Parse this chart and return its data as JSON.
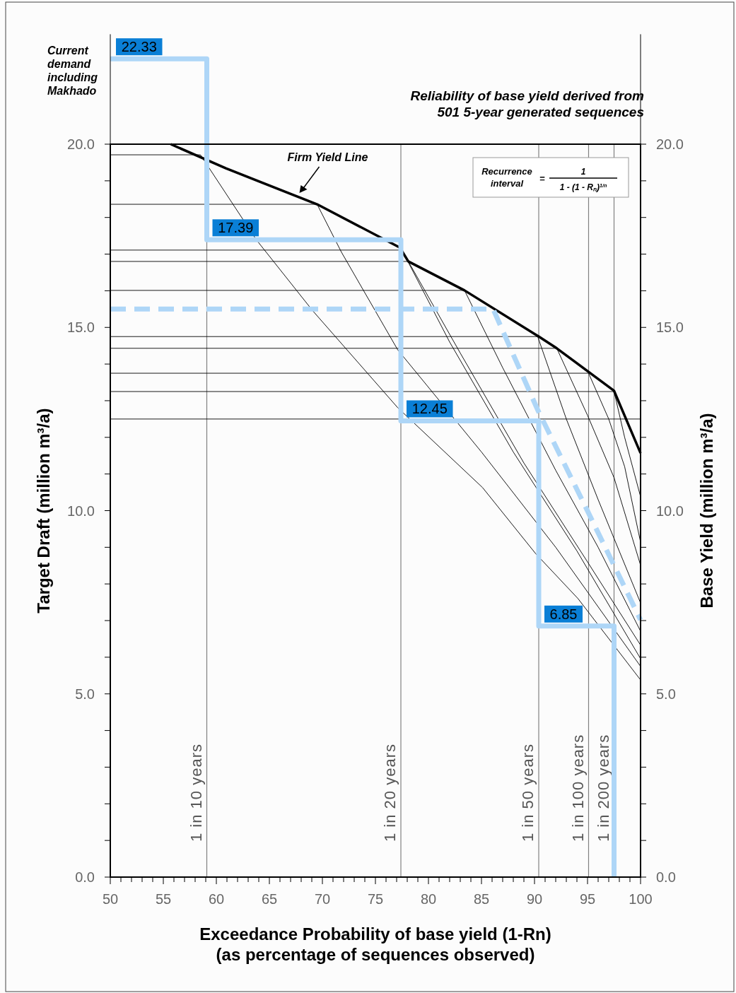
{
  "chart_data": {
    "type": "line",
    "title": "Reliability of base yield derived from\n501 5-year generated sequences",
    "xlabel": "Exceedance Probability  of base yield (1-Rn)\n(as percentage of sequences observed)",
    "ylabel": "Target Draft (million m³/a)",
    "y2label": "Base Yield (million m³/a)",
    "annotations": [
      "Current demand including Makhado",
      "Recurrence interval",
      "=",
      "1",
      "1 - (1 - Rₙ)$^{1/n}$"
    ],
    "xlim": [
      50,
      100
    ],
    "xticks": [
      50,
      {
        "value": 51,
        "label": null
      },
      {
        "value": 52,
        "label": null
      },
      {
        "value": 53,
        "label": null
      },
      {
        "value": 54,
        "label": null
      },
      55,
      {
        "value": 56,
        "label": null
      },
      {
        "value": 57,
        "label": null
      },
      {
        "value": 58,
        "label": null
      },
      {
        "value": 59,
        "label": null
      },
      60,
      {
        "value": 61,
        "label": null
      },
      {
        "value": 62,
        "label": null
      },
      {
        "value": 63,
        "label": null
      },
      {
        "value": 64,
        "label": null
      },
      65,
      {
        "value": 66,
        "label": null
      },
      {
        "value": 67,
        "label": null
      },
      {
        "value": 68,
        "label": null
      },
      {
        "value": 69,
        "label": null
      },
      70,
      {
        "value": 71,
        "label": null
      },
      {
        "value": 72,
        "label": null
      },
      {
        "value": 73,
        "label": null
      },
      {
        "value": 74,
        "label": null
      },
      75,
      {
        "value": 76,
        "label": null
      },
      {
        "value": 77,
        "label": null
      },
      {
        "value": 78,
        "label": null
      },
      {
        "value": 79,
        "label": null
      },
      80,
      {
        "value": 81,
        "label": null
      },
      {
        "value": 82,
        "label": null
      },
      {
        "value": 83,
        "label": null
      },
      {
        "value": 84,
        "label": null
      },
      85,
      {
        "value": 86,
        "label": null
      },
      {
        "value": 87,
        "label": null
      },
      {
        "value": 88,
        "label": null
      },
      {
        "value": 89,
        "label": null
      },
      90,
      {
        "value": 91,
        "label": null
      },
      {
        "value": 92,
        "label": null
      },
      {
        "value": 93,
        "label": null
      },
      {
        "value": 94,
        "label": null
      },
      95,
      {
        "value": 96,
        "label": null
      },
      {
        "value": 97,
        "label": null
      },
      {
        "value": 98,
        "label": null
      },
      {
        "value": 99,
        "label": null
      },
      100
    ],
    "ylim": [
      0,
      23
    ],
    "yticks": [
      {
        "value": 0,
        "label": "0.0"
      },
      {
        "value": 1,
        "label": null
      },
      {
        "value": 2,
        "label": null
      },
      {
        "value": 3,
        "label": null
      },
      {
        "value": 4,
        "label": null
      },
      {
        "value": 5,
        "label": "5.0"
      },
      {
        "value": 6,
        "label": null
      },
      {
        "value": 7,
        "label": null
      },
      {
        "value": 8,
        "label": null
      },
      {
        "value": 9,
        "label": null
      },
      {
        "value": 10,
        "label": "10.0"
      },
      {
        "value": 11,
        "label": null
      },
      {
        "value": 12,
        "label": null
      },
      {
        "value": 13,
        "label": null
      },
      {
        "value": 14,
        "label": null
      },
      {
        "value": 15,
        "label": "15.0"
      },
      {
        "value": 16,
        "label": null
      },
      {
        "value": 17,
        "label": null
      },
      {
        "value": 18,
        "label": null
      },
      {
        "value": 19,
        "label": null
      },
      {
        "value": 20,
        "label": "20.0"
      }
    ],
    "y2lim": [
      0,
      23
    ],
    "y2ticks": [
      {
        "value": 0,
        "label": "0.0"
      },
      {
        "value": 1,
        "label": null
      },
      {
        "value": 2,
        "label": null
      },
      {
        "value": 3,
        "label": null
      },
      {
        "value": 4,
        "label": null
      },
      {
        "value": 5,
        "label": "5.0"
      },
      {
        "value": 6,
        "label": null
      },
      {
        "value": 7,
        "label": null
      },
      {
        "value": 8,
        "label": null
      },
      {
        "value": 9,
        "label": null
      },
      {
        "value": 10,
        "label": "10.0"
      },
      {
        "value": 11,
        "label": null
      },
      {
        "value": 12,
        "label": null
      },
      {
        "value": 13,
        "label": null
      },
      {
        "value": 14,
        "label": null
      },
      {
        "value": 15,
        "label": "15.0"
      },
      {
        "value": 16,
        "label": null
      },
      {
        "value": 17,
        "label": null
      },
      {
        "value": 18,
        "label": null
      },
      {
        "value": 19,
        "label": null
      },
      {
        "value": 20,
        "label": "20.0"
      }
    ],
    "ref_lines": [
      {
        "axis": "x",
        "value": 59.1,
        "label": "1 in 10 years",
        "color": "#808080"
      },
      {
        "axis": "x",
        "value": 77.4,
        "label": "1 in 20 years",
        "color": "#808080"
      },
      {
        "axis": "x",
        "value": 90.4,
        "label": "1 in 50 years",
        "color": "#808080"
      },
      {
        "axis": "x",
        "value": 95.1,
        "label": "1 in 100 years",
        "color": "#808080"
      },
      {
        "axis": "x",
        "value": 97.5,
        "label": "1 in 200 years",
        "color": "#808080"
      }
    ],
    "grid": false,
    "legend": false,
    "marker": "none",
    "series": [
      {
        "color": "#000000",
        "x": [
          50,
          58.5
        ],
        "values": [
          19.71,
          19.71
        ]
      },
      {
        "color": "#000000",
        "x": [
          50,
          69.5
        ],
        "values": [
          18.36,
          18.36
        ]
      },
      {
        "color": "#000000",
        "x": [
          50,
          77.5
        ],
        "values": [
          17.11,
          17.11
        ]
      },
      {
        "color": "#000000",
        "x": [
          50,
          78.1
        ],
        "values": [
          16.8,
          16.8
        ]
      },
      {
        "color": "#000000",
        "x": [
          50,
          83.4
        ],
        "values": [
          16.01,
          16.01
        ]
      },
      {
        "color": "#000000",
        "x": [
          50,
          90.3
        ],
        "values": [
          14.75,
          14.75
        ]
      },
      {
        "color": "#000000",
        "x": [
          50,
          92.1
        ],
        "values": [
          14.43,
          14.43
        ]
      },
      {
        "color": "#000000",
        "x": [
          50,
          95.1
        ],
        "values": [
          13.75,
          13.75
        ]
      },
      {
        "color": "#000000",
        "x": [
          50,
          97.5
        ],
        "values": [
          13.25,
          13.25
        ]
      },
      {
        "color": "#000000",
        "x": [
          50,
          100
        ],
        "values": [
          12.5,
          12.5
        ]
      },
      {
        "color": "#000000",
        "x": [
          58.5,
          63.8,
          69.1,
          77.1,
          85.1,
          90.1,
          94.1,
          100
        ],
        "values": [
          19.71,
          17.38,
          15.45,
          12.81,
          10.63,
          8.83,
          7.6,
          5.38
        ]
      },
      {
        "color": "#000000",
        "x": [
          69.5,
          71.8,
          77.1,
          85,
          92,
          100
        ],
        "values": [
          18.36,
          17.05,
          14.39,
          11.6,
          9,
          5.75
        ]
      },
      {
        "color": "#000000",
        "x": [
          77.5,
          82,
          88,
          94,
          100
        ],
        "values": [
          17.11,
          14.6,
          11.6,
          8.9,
          5.96
        ]
      },
      {
        "color": "#000000",
        "x": [
          78.1,
          83,
          89,
          95,
          100
        ],
        "values": [
          16.8,
          14.3,
          11.3,
          8.6,
          6.33
        ]
      },
      {
        "color": "#000000",
        "x": [
          83.4,
          87,
          92,
          96,
          100
        ],
        "values": [
          16.01,
          13.9,
          11.1,
          9,
          6.71
        ]
      },
      {
        "color": "#000000",
        "x": [
          90.3,
          93,
          96,
          100
        ],
        "values": [
          14.75,
          12.5,
          10.3,
          7.48
        ]
      },
      {
        "color": "#000000",
        "x": [
          92.1,
          95,
          97.5,
          100
        ],
        "values": [
          14.43,
          12.6,
          10.9,
          8.51
        ]
      },
      {
        "color": "#000000",
        "x": [
          95.1,
          97,
          98.5,
          100
        ],
        "values": [
          13.75,
          12.5,
          11.2,
          9.14
        ]
      },
      {
        "color": "#000000",
        "x": [
          97.5,
          98.5,
          100
        ],
        "values": [
          13.25,
          12,
          10.38
        ]
      },
      {
        "name": "Firm Yield Line",
        "color": "#000000",
        "x": [
          55.7,
          60.9,
          69.5,
          77.3,
          78.1,
          83.4,
          90.3,
          92.1,
          97.5,
          100
        ],
        "values": [
          20,
          19.34,
          18.36,
          17.18,
          16.8,
          16.01,
          14.77,
          14.43,
          13.27,
          11.57
        ]
      },
      {
        "color": "#aed6f7",
        "line_style": "dashed",
        "x": [
          50,
          86.1,
          90.3,
          94.9,
          100
        ],
        "values": [
          15.5,
          15.5,
          12.75,
          10.05,
          7.02
        ]
      },
      {
        "type": "step",
        "color": "#aed6f7",
        "x": [
          50,
          59.1,
          77.4,
          90.4,
          97.5
        ],
        "values": [
          22.33,
          17.39,
          12.45,
          6.85,
          0
        ],
        "value_labels": [
          "22.33",
          "17.39",
          "12.45",
          "6.85",
          null
        ]
      }
    ]
  }
}
